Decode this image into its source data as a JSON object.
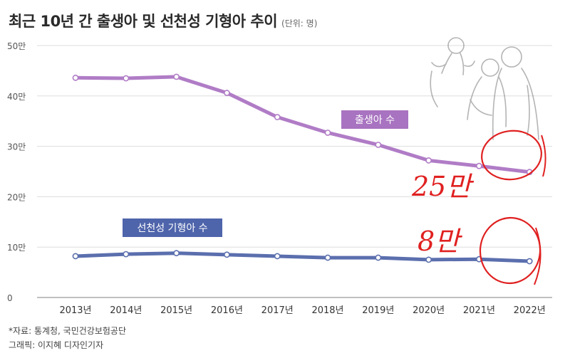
{
  "header": {
    "title": "최근 10년 간 출생아 및 선천성 기형아 추이",
    "unit": "(단위: 명)"
  },
  "footer": {
    "source": "*자료: 통계청, 국민건강보험공단",
    "graphic": "그래픽: 이지혜 디자인기자"
  },
  "colors": {
    "births": "#b07cc6",
    "births_label_bg": "#a873c0",
    "defects": "#5b6fae",
    "defects_label_bg": "#4e64ab",
    "grid": "#dddddd",
    "annotation": "#e02020"
  },
  "chart_data": {
    "type": "line",
    "categories": [
      "2013년",
      "2014년",
      "2015년",
      "2016년",
      "2017년",
      "2018년",
      "2019년",
      "2020년",
      "2021년",
      "2022년"
    ],
    "yticks": [
      "0",
      "10만",
      "20만",
      "30만",
      "40만",
      "50만"
    ],
    "ylim": [
      0,
      500000
    ],
    "grid": true,
    "series": [
      {
        "name": "출생아 수",
        "color": "#b07cc6",
        "values": [
          436000,
          435000,
          438000,
          406000,
          358000,
          327000,
          303000,
          272000,
          261000,
          249000
        ]
      },
      {
        "name": "선천성 기형아 수",
        "color": "#5b6fae",
        "values": [
          82000,
          86000,
          88000,
          85000,
          82000,
          79000,
          79000,
          75000,
          76000,
          72000
        ]
      }
    ],
    "annotations": [
      {
        "text": "25만",
        "color": "#e02020"
      },
      {
        "text": "8만",
        "color": "#e02020"
      }
    ]
  },
  "illustration": {
    "icon": "family-illustration"
  }
}
